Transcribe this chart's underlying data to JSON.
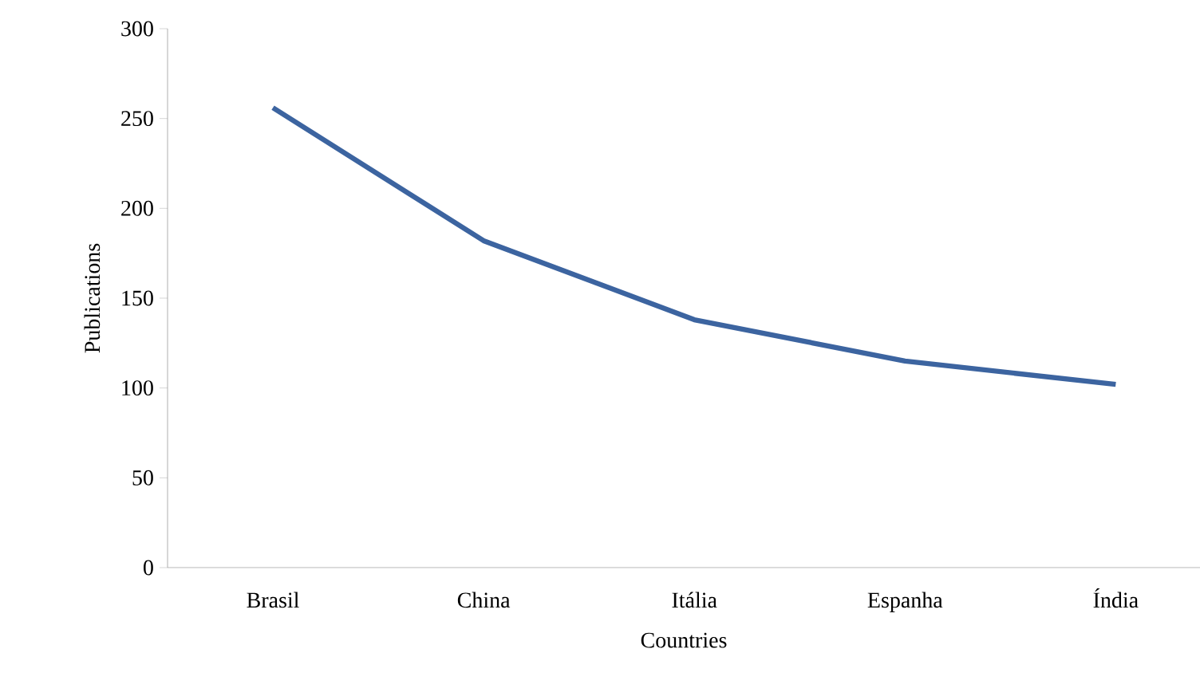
{
  "chart_data": {
    "type": "line",
    "xlabel": "Countries",
    "ylabel": "Publications",
    "categories": [
      "Brasil",
      "China",
      "Itália",
      "Espanha",
      "Índia"
    ],
    "values": [
      256,
      182,
      138,
      115,
      102
    ],
    "color": "#3c64a0",
    "ylim": [
      0,
      300
    ],
    "yticks": [
      0,
      50,
      100,
      150,
      200,
      250,
      300
    ],
    "grid": false,
    "marker": "none",
    "line_style": "solid"
  }
}
